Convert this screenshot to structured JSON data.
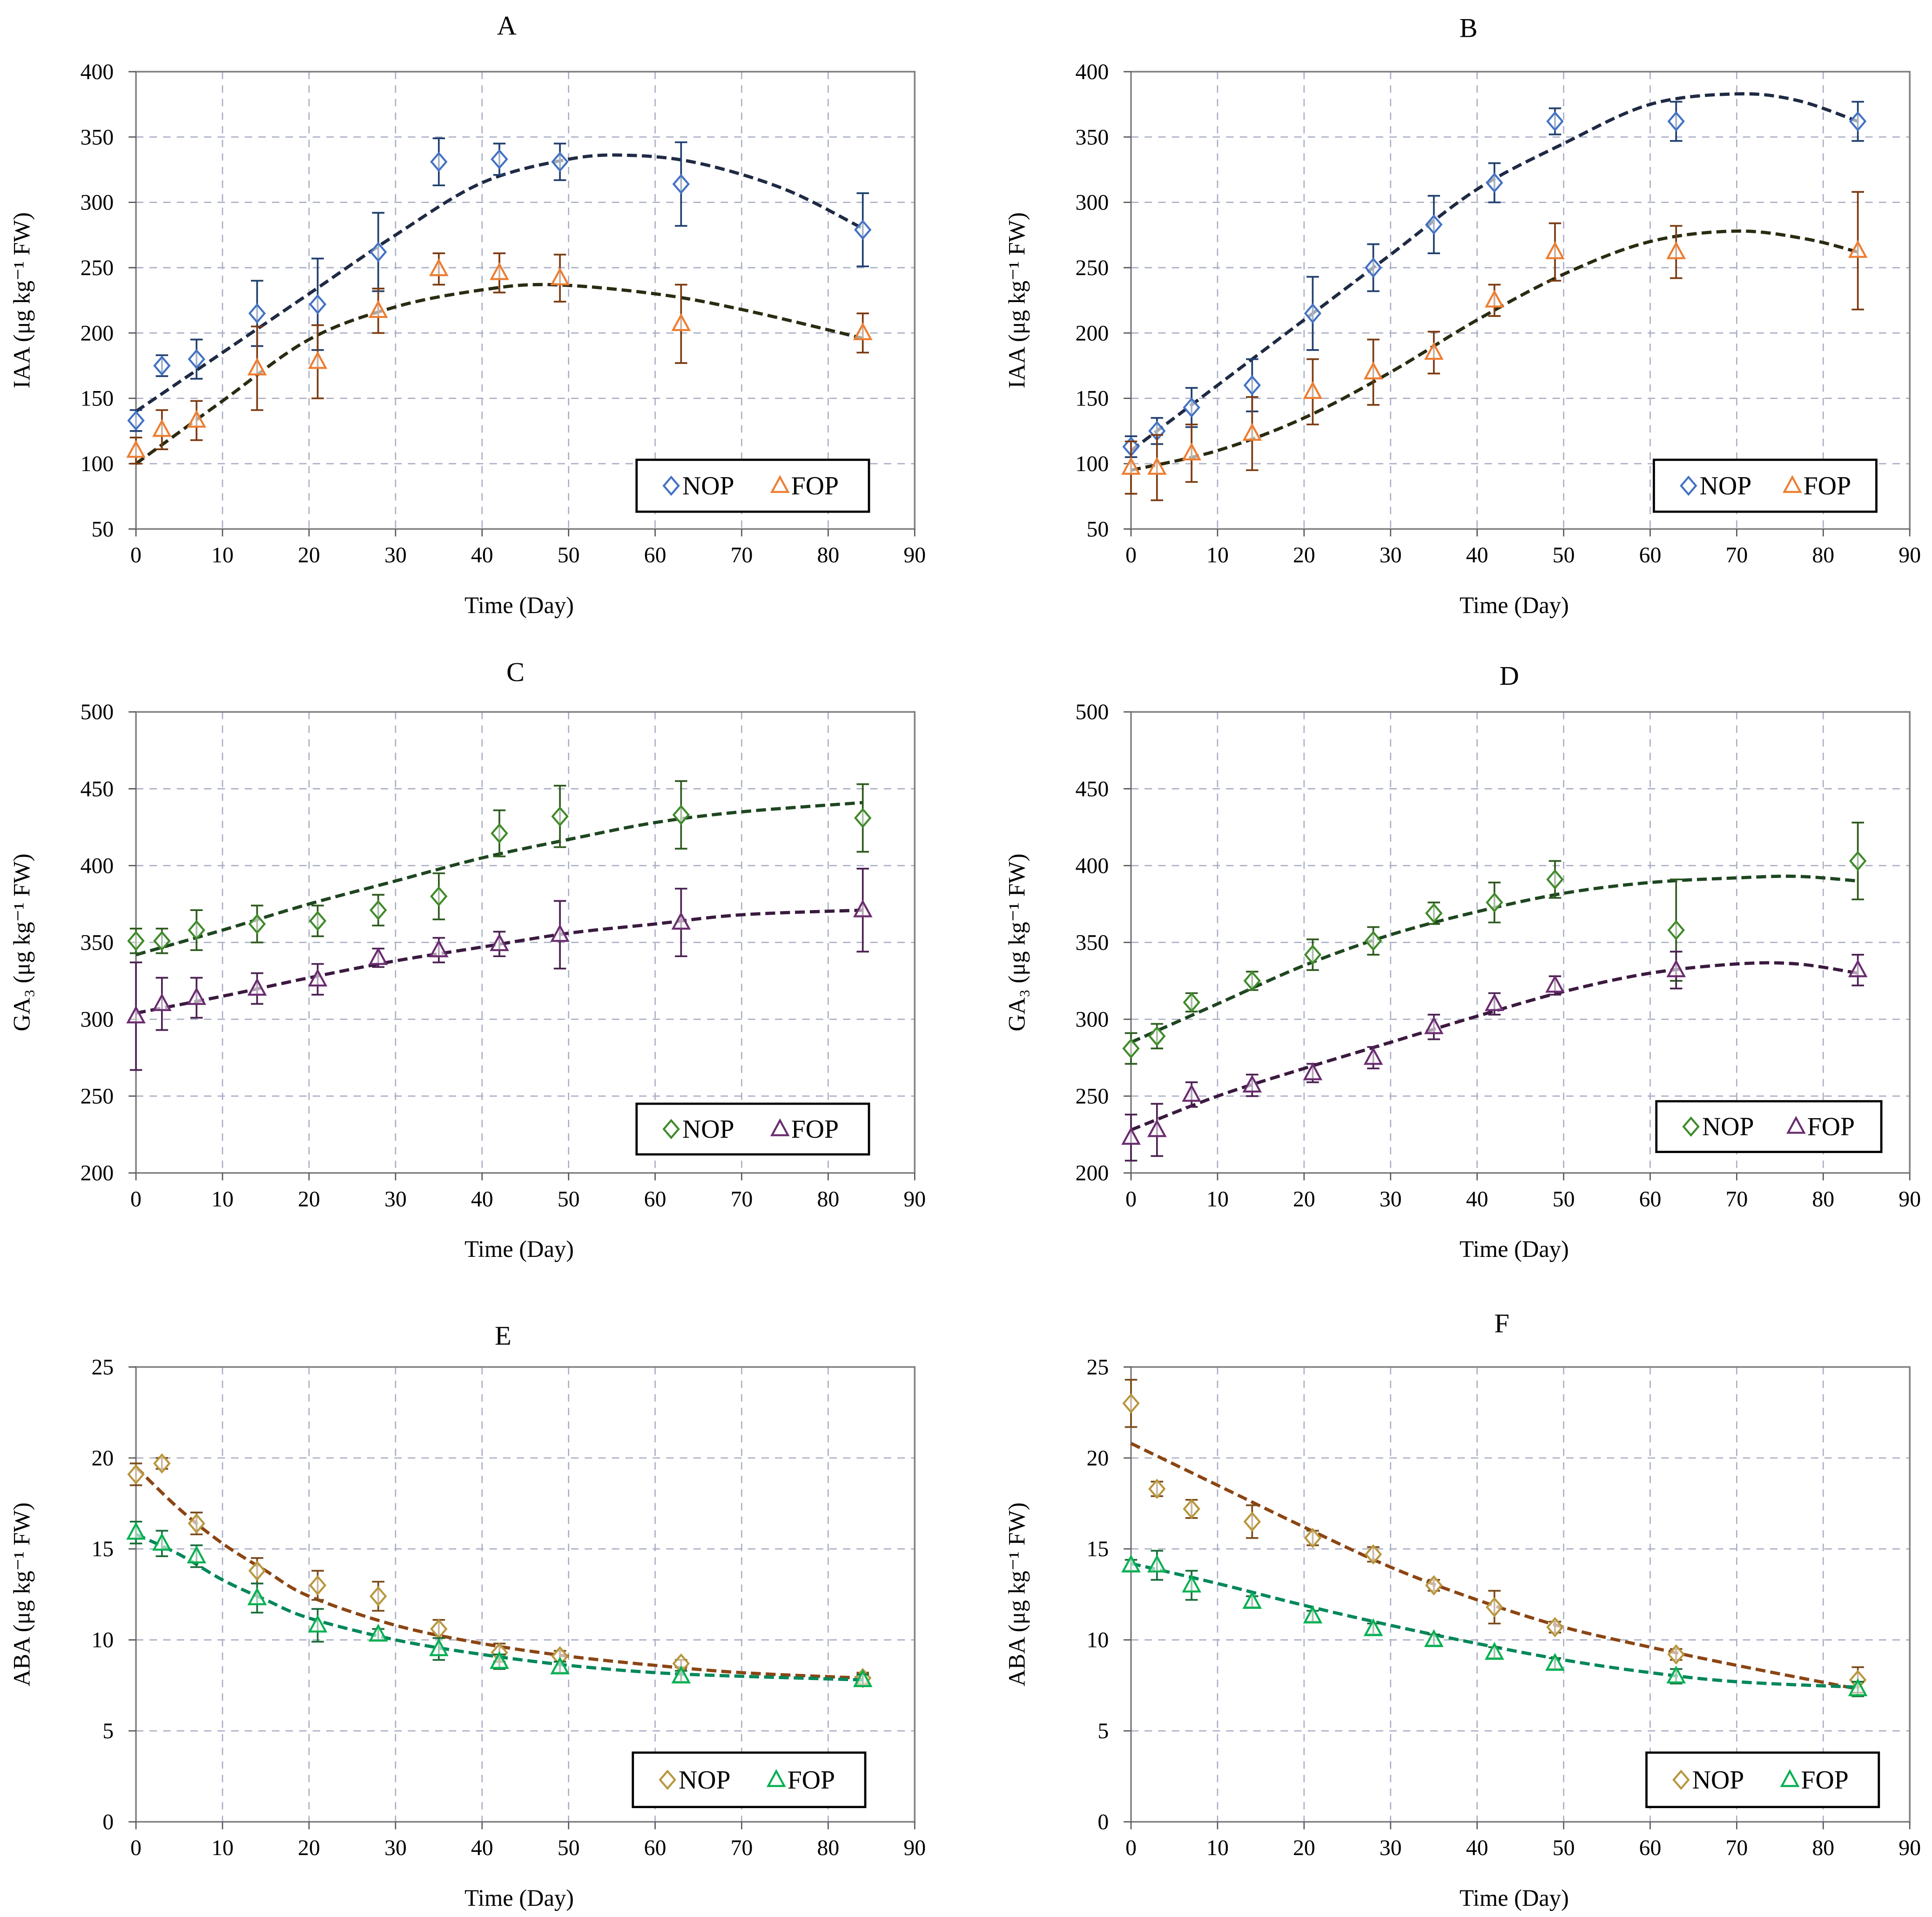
{
  "chart_data": [
    {
      "type": "scatter",
      "title": "A",
      "xlabel": "Time  (Day)",
      "ylabel": "IAA (μg kg⁻¹ FW)",
      "xlim": [
        0,
        90
      ],
      "ylim": [
        50,
        400
      ],
      "xstep": 10,
      "ystep": 50,
      "grid": true,
      "legend": "bottom-right",
      "x": [
        0,
        3,
        7,
        14,
        21,
        28,
        35,
        42,
        49,
        63,
        84
      ],
      "series": [
        {
          "name": "NOP",
          "marker": "diamond",
          "color": "#4472c4",
          "err_color": "#1f3f6e",
          "fit_color": "#1f2a44",
          "values": [
            133,
            175,
            180,
            215,
            222,
            262,
            331,
            333,
            331,
            314,
            279
          ],
          "errors": [
            8,
            8,
            15,
            25,
            35,
            30,
            18,
            12,
            14,
            32,
            28
          ],
          "fit": {
            "x": [
              0,
              10,
              20,
              30,
              40,
              50,
              57,
              65,
              75,
              84
            ],
            "y": [
              140,
              185,
              230,
              275,
              315,
              333,
              336,
              330,
              310,
              280
            ]
          }
        },
        {
          "name": "FOP",
          "marker": "triangle",
          "color": "#ed7d31",
          "err_color": "#7b3a10",
          "fit_color": "#2b2b12",
          "values": [
            110,
            126,
            133,
            173,
            178,
            217,
            249,
            246,
            242,
            207,
            200
          ],
          "errors": [
            10,
            15,
            15,
            32,
            28,
            17,
            12,
            15,
            18,
            30,
            15
          ],
          "fit": {
            "x": [
              0,
              10,
              20,
              30,
              40,
              48,
              60,
              70,
              84
            ],
            "y": [
              100,
              148,
              195,
              220,
              233,
              237,
              230,
              218,
              196
            ]
          }
        }
      ]
    },
    {
      "type": "scatter",
      "title": "B",
      "xlabel": "Time  (Day)",
      "ylabel": "IAA (μg kg⁻¹ FW)",
      "xlim": [
        0,
        90
      ],
      "ylim": [
        50,
        400
      ],
      "xstep": 10,
      "ystep": 50,
      "grid": true,
      "legend": "bottom-right",
      "x": [
        0,
        3,
        7,
        14,
        21,
        28,
        35,
        42,
        49,
        63,
        84
      ],
      "series": [
        {
          "name": "NOP",
          "marker": "diamond",
          "color": "#4472c4",
          "err_color": "#1f3f6e",
          "fit_color": "#1f2a44",
          "values": [
            113,
            125,
            143,
            160,
            215,
            250,
            283,
            315,
            362,
            362,
            362
          ],
          "errors": [
            8,
            10,
            15,
            20,
            28,
            18,
            22,
            15,
            10,
            15,
            15
          ],
          "fit": {
            "x": [
              0,
              10,
              20,
              30,
              40,
              50,
              60,
              70,
              77,
              84
            ],
            "y": [
              110,
              160,
              210,
              260,
              310,
              345,
              375,
              383,
              378,
              362
            ]
          }
        },
        {
          "name": "FOP",
          "marker": "triangle",
          "color": "#ed7d31",
          "err_color": "#7b3a10",
          "fit_color": "#2b2b12",
          "values": [
            97,
            97,
            108,
            123,
            155,
            170,
            185,
            225,
            262,
            262,
            263
          ],
          "errors": [
            20,
            25,
            22,
            28,
            25,
            25,
            16,
            12,
            22,
            20,
            45
          ],
          "fit": {
            "x": [
              0,
              10,
              20,
              30,
              40,
              50,
              60,
              70,
              78,
              84
            ],
            "y": [
              95,
              110,
              135,
              170,
              210,
              245,
              270,
              278,
              272,
              262
            ]
          }
        }
      ]
    },
    {
      "type": "scatter",
      "title": "C",
      "xlabel": "Time  (Day)",
      "ylabel": "GA₃ (μg kg⁻¹ FW)",
      "xlim": [
        0,
        90
      ],
      "ylim": [
        200,
        500
      ],
      "xstep": 10,
      "ystep": 50,
      "grid": true,
      "legend": "bottom-right",
      "x": [
        0,
        3,
        7,
        14,
        21,
        28,
        35,
        42,
        49,
        63,
        84
      ],
      "series": [
        {
          "name": "NOP",
          "marker": "diamond",
          "color": "#3f8a2a",
          "err_color": "#2d5a1e",
          "fit_color": "#1e4620",
          "values": [
            351,
            351,
            358,
            362,
            364,
            371,
            380,
            421,
            432,
            433,
            431
          ],
          "errors": [
            8,
            8,
            13,
            12,
            10,
            10,
            15,
            15,
            20,
            22,
            22
          ],
          "fit": {
            "x": [
              0,
              10,
              20,
              30,
              40,
              50,
              60,
              70,
              84
            ],
            "y": [
              342,
              358,
              375,
              390,
              405,
              417,
              428,
              435,
              441
            ]
          }
        },
        {
          "name": "FOP",
          "marker": "triangle",
          "color": "#6a2c70",
          "err_color": "#4a2050",
          "fit_color": "#3b1a3f",
          "values": [
            302,
            310,
            314,
            320,
            326,
            340,
            345,
            349,
            355,
            363,
            371
          ],
          "errors": [
            35,
            17,
            13,
            10,
            10,
            6,
            8,
            8,
            22,
            22,
            27
          ],
          "fit": {
            "x": [
              0,
              10,
              20,
              30,
              40,
              50,
              60,
              70,
              84
            ],
            "y": [
              304,
              315,
              327,
              338,
              347,
              356,
              362,
              368,
              371
            ]
          }
        }
      ]
    },
    {
      "type": "scatter",
      "title": "D",
      "xlabel": "Time  (Day)",
      "ylabel": "GA₃ (μg kg⁻¹ FW)",
      "xlim": [
        0,
        90
      ],
      "ylim": [
        200,
        500
      ],
      "xstep": 10,
      "ystep": 50,
      "grid": true,
      "legend": "bottom-right",
      "x": [
        0,
        3,
        7,
        14,
        21,
        28,
        35,
        42,
        49,
        63,
        84
      ],
      "series": [
        {
          "name": "NOP",
          "marker": "diamond",
          "color": "#3f8a2a",
          "err_color": "#2d5a1e",
          "fit_color": "#1e4620",
          "values": [
            281,
            289,
            311,
            325,
            342,
            351,
            369,
            376,
            391,
            358,
            403
          ],
          "errors": [
            10,
            8,
            6,
            6,
            10,
            9,
            7,
            13,
            12,
            33,
            25
          ],
          "fit": {
            "x": [
              0,
              10,
              20,
              30,
              40,
              50,
              60,
              70,
              77,
              84
            ],
            "y": [
              285,
              310,
              335,
              355,
              370,
              382,
              389,
              392,
              393,
              390
            ]
          }
        },
        {
          "name": "FOP",
          "marker": "triangle",
          "color": "#6a2c70",
          "err_color": "#4a2050",
          "fit_color": "#3b1a3f",
          "values": [
            223,
            228,
            251,
            257,
            265,
            275,
            295,
            310,
            322,
            332,
            332
          ],
          "errors": [
            15,
            17,
            8,
            7,
            6,
            7,
            8,
            7,
            6,
            12,
            10
          ],
          "fit": {
            "x": [
              0,
              10,
              20,
              30,
              40,
              50,
              60,
              70,
              77,
              84
            ],
            "y": [
              228,
              250,
              268,
              285,
              302,
              318,
              330,
              336,
              336,
              330
            ]
          }
        }
      ]
    },
    {
      "type": "scatter",
      "title": "E",
      "xlabel": "Time  (Day)",
      "ylabel": "ABA (μg kg⁻¹ FW)",
      "xlim": [
        0,
        90
      ],
      "ylim": [
        0,
        25
      ],
      "xstep": 10,
      "ystep": 5,
      "grid": true,
      "legend": "bottom-right",
      "x": [
        0,
        3,
        7,
        14,
        21,
        28,
        35,
        42,
        49,
        63,
        84
      ],
      "series": [
        {
          "name": "NOP",
          "marker": "diamond",
          "color": "#b8963c",
          "err_color": "#7a4a1a",
          "fit_color": "#8b4513",
          "values": [
            19.1,
            19.7,
            16.4,
            13.8,
            13.0,
            12.4,
            10.6,
            9.3,
            9.1,
            8.7,
            7.9
          ],
          "errors": [
            0.6,
            0.3,
            0.6,
            0.7,
            0.8,
            0.8,
            0.5,
            0.5,
            0.3,
            0.2,
            0.3
          ],
          "fit": {
            "x": [
              0,
              5,
              10,
              15,
              20,
              30,
              40,
              50,
              60,
              70,
              84
            ],
            "y": [
              19.5,
              17.2,
              15.3,
              13.8,
              12.4,
              10.8,
              9.8,
              9.1,
              8.6,
              8.2,
              7.9
            ]
          }
        },
        {
          "name": "FOP",
          "marker": "triangle",
          "color": "#00b050",
          "err_color": "#1a6b3a",
          "fit_color": "#00875a",
          "values": [
            15.9,
            15.3,
            14.6,
            12.3,
            10.8,
            10.3,
            9.5,
            8.8,
            8.5,
            8.0,
            7.8
          ],
          "errors": [
            0.6,
            0.7,
            0.6,
            0.8,
            0.9,
            0.3,
            0.6,
            0.4,
            0.3,
            0.3,
            0.3
          ],
          "fit": {
            "x": [
              0,
              5,
              10,
              15,
              20,
              30,
              40,
              50,
              60,
              70,
              84
            ],
            "y": [
              15.8,
              14.7,
              13.3,
              12.2,
              11.2,
              10.0,
              9.2,
              8.6,
              8.2,
              8.0,
              7.8
            ]
          }
        }
      ]
    },
    {
      "type": "scatter",
      "title": "F",
      "xlabel": "Time  (Day)",
      "ylabel": "ABA (μg kg⁻¹ FW)",
      "xlim": [
        0,
        90
      ],
      "ylim": [
        0,
        25
      ],
      "xstep": 10,
      "ystep": 5,
      "grid": true,
      "legend": "bottom-right",
      "x": [
        0,
        3,
        7,
        14,
        21,
        28,
        35,
        42,
        49,
        63,
        84
      ],
      "series": [
        {
          "name": "NOP",
          "marker": "diamond",
          "color": "#b8963c",
          "err_color": "#7a4a1a",
          "fit_color": "#8b4513",
          "values": [
            23.0,
            18.3,
            17.2,
            16.5,
            15.6,
            14.7,
            13.0,
            11.8,
            10.7,
            9.2,
            7.8
          ],
          "errors": [
            1.3,
            0.4,
            0.5,
            0.9,
            0.4,
            0.4,
            0.3,
            0.9,
            0.3,
            0.3,
            0.7
          ],
          "fit": {
            "x": [
              0,
              10,
              20,
              30,
              40,
              50,
              60,
              70,
              84
            ],
            "y": [
              20.8,
              18.5,
              16.2,
              14.0,
              12.2,
              10.7,
              9.6,
              8.6,
              7.3
            ]
          }
        },
        {
          "name": "FOP",
          "marker": "triangle",
          "color": "#00b050",
          "err_color": "#1a6b3a",
          "fit_color": "#00875a",
          "values": [
            14.1,
            14.1,
            13.0,
            12.1,
            11.3,
            10.6,
            10.0,
            9.3,
            8.7,
            8.0,
            7.3
          ],
          "errors": [
            0.3,
            0.8,
            0.8,
            0.3,
            0.3,
            0.3,
            0.3,
            0.3,
            0.3,
            0.4,
            0.4
          ],
          "fit": {
            "x": [
              0,
              10,
              20,
              30,
              40,
              50,
              60,
              70,
              84
            ],
            "y": [
              14.2,
              13.1,
              11.9,
              10.8,
              9.8,
              8.9,
              8.2,
              7.7,
              7.4
            ]
          }
        }
      ]
    }
  ]
}
